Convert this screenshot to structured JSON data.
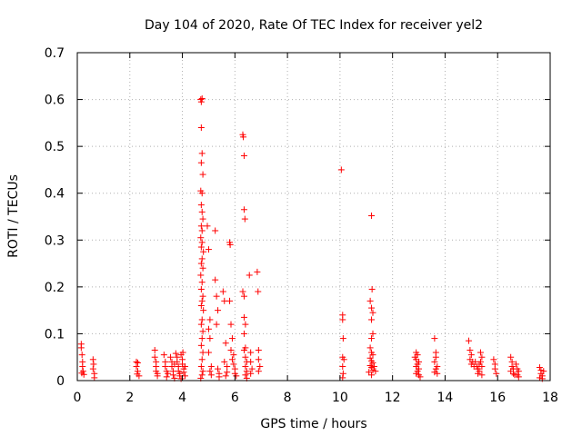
{
  "chart_data": {
    "type": "scatter",
    "title": "Day 104 of 2020, Rate Of TEC Index for receiver yel2",
    "xlabel": "GPS time / hours",
    "ylabel": "ROTI / TECUs",
    "xlim": [
      0,
      18
    ],
    "ylim": [
      0,
      0.7
    ],
    "x_ticks": [
      "0",
      "2",
      "4",
      "6",
      "8",
      "10",
      "12",
      "14",
      "16",
      "18"
    ],
    "y_ticks": [
      "0",
      "0.1",
      "0.2",
      "0.3",
      "0.4",
      "0.5",
      "0.6",
      "0.7"
    ],
    "grid": true,
    "marker": "+",
    "color": "#ff0000",
    "series": [
      {
        "name": "ROTI",
        "points": [
          [
            0.15,
            0.078
          ],
          [
            0.15,
            0.07
          ],
          [
            0.18,
            0.055
          ],
          [
            0.2,
            0.04
          ],
          [
            0.2,
            0.03
          ],
          [
            0.22,
            0.02
          ],
          [
            0.25,
            0.013
          ],
          [
            0.17,
            0.016
          ],
          [
            0.6,
            0.045
          ],
          [
            0.62,
            0.035
          ],
          [
            0.6,
            0.025
          ],
          [
            0.65,
            0.015
          ],
          [
            0.65,
            0.006
          ],
          [
            2.25,
            0.04
          ],
          [
            2.25,
            0.03
          ],
          [
            2.3,
            0.02
          ],
          [
            2.28,
            0.014
          ],
          [
            2.35,
            0.01
          ],
          [
            2.3,
            0.038
          ],
          [
            2.95,
            0.065
          ],
          [
            2.95,
            0.05
          ],
          [
            3.0,
            0.04
          ],
          [
            3.0,
            0.03
          ],
          [
            3.0,
            0.02
          ],
          [
            3.05,
            0.015
          ],
          [
            3.05,
            0.01
          ],
          [
            3.3,
            0.055
          ],
          [
            3.35,
            0.04
          ],
          [
            3.35,
            0.03
          ],
          [
            3.4,
            0.02
          ],
          [
            3.45,
            0.015
          ],
          [
            3.4,
            0.008
          ],
          [
            3.55,
            0.05
          ],
          [
            3.6,
            0.04
          ],
          [
            3.6,
            0.03
          ],
          [
            3.65,
            0.02
          ],
          [
            3.65,
            0.012
          ],
          [
            3.7,
            0.035
          ],
          [
            3.75,
            0.058
          ],
          [
            3.8,
            0.05
          ],
          [
            3.8,
            0.04
          ],
          [
            3.85,
            0.03
          ],
          [
            3.85,
            0.02
          ],
          [
            3.9,
            0.015
          ],
          [
            3.9,
            0.01
          ],
          [
            3.95,
            0.055
          ],
          [
            4.0,
            0.045
          ],
          [
            4.0,
            0.035
          ],
          [
            4.05,
            0.025
          ],
          [
            4.05,
            0.018
          ],
          [
            4.1,
            0.01
          ],
          [
            4.1,
            0.03
          ],
          [
            3.7,
            0.005
          ],
          [
            3.95,
            0.004
          ],
          [
            4.02,
            0.06
          ],
          [
            4.7,
            0.6
          ],
          [
            4.72,
            0.595
          ],
          [
            4.75,
            0.602
          ],
          [
            4.72,
            0.54
          ],
          [
            4.75,
            0.485
          ],
          [
            4.72,
            0.465
          ],
          [
            4.78,
            0.44
          ],
          [
            4.7,
            0.405
          ],
          [
            4.75,
            0.4
          ],
          [
            4.72,
            0.375
          ],
          [
            4.75,
            0.36
          ],
          [
            4.78,
            0.345
          ],
          [
            4.72,
            0.33
          ],
          [
            4.75,
            0.32
          ],
          [
            4.7,
            0.305
          ],
          [
            4.75,
            0.295
          ],
          [
            4.72,
            0.285
          ],
          [
            4.8,
            0.275
          ],
          [
            4.75,
            0.26
          ],
          [
            4.72,
            0.25
          ],
          [
            4.78,
            0.24
          ],
          [
            4.7,
            0.225
          ],
          [
            4.75,
            0.21
          ],
          [
            4.72,
            0.195
          ],
          [
            4.78,
            0.18
          ],
          [
            4.75,
            0.17
          ],
          [
            4.72,
            0.16
          ],
          [
            4.8,
            0.15
          ],
          [
            4.75,
            0.13
          ],
          [
            4.72,
            0.12
          ],
          [
            4.78,
            0.105
          ],
          [
            4.75,
            0.09
          ],
          [
            4.72,
            0.075
          ],
          [
            4.78,
            0.06
          ],
          [
            4.75,
            0.045
          ],
          [
            4.72,
            0.03
          ],
          [
            4.78,
            0.02
          ],
          [
            4.75,
            0.012
          ],
          [
            4.7,
            0.005
          ],
          [
            4.95,
            0.33
          ],
          [
            5.0,
            0.28
          ],
          [
            5.05,
            0.13
          ],
          [
            5.0,
            0.11
          ],
          [
            5.05,
            0.09
          ],
          [
            5.0,
            0.06
          ],
          [
            5.1,
            0.03
          ],
          [
            5.05,
            0.02
          ],
          [
            5.1,
            0.012
          ],
          [
            5.25,
            0.32
          ],
          [
            5.25,
            0.215
          ],
          [
            5.3,
            0.18
          ],
          [
            5.35,
            0.15
          ],
          [
            5.3,
            0.12
          ],
          [
            5.35,
            0.025
          ],
          [
            5.4,
            0.015
          ],
          [
            5.4,
            0.008
          ],
          [
            5.55,
            0.19
          ],
          [
            5.6,
            0.17
          ],
          [
            5.65,
            0.08
          ],
          [
            5.6,
            0.04
          ],
          [
            5.7,
            0.03
          ],
          [
            5.7,
            0.018
          ],
          [
            5.65,
            0.01
          ],
          [
            5.8,
            0.295
          ],
          [
            5.82,
            0.29
          ],
          [
            5.8,
            0.17
          ],
          [
            5.85,
            0.12
          ],
          [
            5.9,
            0.09
          ],
          [
            5.85,
            0.065
          ],
          [
            5.9,
            0.045
          ],
          [
            5.95,
            0.035
          ],
          [
            6.0,
            0.025
          ],
          [
            6.0,
            0.015
          ],
          [
            6.05,
            0.01
          ],
          [
            5.95,
            0.055
          ],
          [
            6.3,
            0.525
          ],
          [
            6.32,
            0.52
          ],
          [
            6.35,
            0.48
          ],
          [
            6.35,
            0.365
          ],
          [
            6.38,
            0.345
          ],
          [
            6.3,
            0.19
          ],
          [
            6.35,
            0.18
          ],
          [
            6.35,
            0.135
          ],
          [
            6.4,
            0.12
          ],
          [
            6.35,
            0.1
          ],
          [
            6.4,
            0.07
          ],
          [
            6.35,
            0.065
          ],
          [
            6.4,
            0.05
          ],
          [
            6.45,
            0.04
          ],
          [
            6.4,
            0.03
          ],
          [
            6.45,
            0.02
          ],
          [
            6.4,
            0.012
          ],
          [
            6.45,
            0.005
          ],
          [
            6.55,
            0.225
          ],
          [
            6.6,
            0.06
          ],
          [
            6.6,
            0.04
          ],
          [
            6.65,
            0.025
          ],
          [
            6.6,
            0.015
          ],
          [
            6.85,
            0.232
          ],
          [
            6.88,
            0.19
          ],
          [
            6.9,
            0.065
          ],
          [
            6.9,
            0.045
          ],
          [
            6.95,
            0.03
          ],
          [
            6.9,
            0.02
          ],
          [
            10.05,
            0.45
          ],
          [
            10.1,
            0.14
          ],
          [
            10.1,
            0.13
          ],
          [
            10.12,
            0.09
          ],
          [
            10.1,
            0.05
          ],
          [
            10.15,
            0.045
          ],
          [
            10.1,
            0.03
          ],
          [
            10.12,
            0.015
          ],
          [
            10.1,
            0.006
          ],
          [
            11.2,
            0.352
          ],
          [
            11.22,
            0.195
          ],
          [
            11.15,
            0.17
          ],
          [
            11.2,
            0.155
          ],
          [
            11.25,
            0.145
          ],
          [
            11.2,
            0.13
          ],
          [
            11.25,
            0.1
          ],
          [
            11.2,
            0.09
          ],
          [
            11.15,
            0.07
          ],
          [
            11.2,
            0.06
          ],
          [
            11.25,
            0.055
          ],
          [
            11.15,
            0.048
          ],
          [
            11.2,
            0.042
          ],
          [
            11.25,
            0.038
          ],
          [
            11.15,
            0.032
          ],
          [
            11.2,
            0.028
          ],
          [
            11.25,
            0.022
          ],
          [
            11.1,
            0.018
          ],
          [
            11.2,
            0.012
          ],
          [
            11.3,
            0.03
          ],
          [
            11.35,
            0.02
          ],
          [
            12.9,
            0.06
          ],
          [
            12.95,
            0.055
          ],
          [
            12.9,
            0.045
          ],
          [
            13.0,
            0.04
          ],
          [
            12.95,
            0.035
          ],
          [
            12.9,
            0.03
          ],
          [
            13.0,
            0.025
          ],
          [
            12.95,
            0.02
          ],
          [
            12.9,
            0.015
          ],
          [
            13.0,
            0.012
          ],
          [
            13.05,
            0.008
          ],
          [
            12.85,
            0.05
          ],
          [
            13.6,
            0.09
          ],
          [
            13.65,
            0.06
          ],
          [
            13.65,
            0.05
          ],
          [
            13.6,
            0.04
          ],
          [
            13.7,
            0.03
          ],
          [
            13.65,
            0.025
          ],
          [
            13.6,
            0.018
          ],
          [
            13.7,
            0.015
          ],
          [
            14.9,
            0.085
          ],
          [
            14.95,
            0.065
          ],
          [
            15.0,
            0.055
          ],
          [
            14.95,
            0.045
          ],
          [
            15.05,
            0.04
          ],
          [
            15.0,
            0.035
          ],
          [
            15.1,
            0.03
          ],
          [
            15.15,
            0.04
          ],
          [
            15.2,
            0.03
          ],
          [
            15.25,
            0.025
          ],
          [
            15.3,
            0.035
          ],
          [
            15.35,
            0.06
          ],
          [
            15.4,
            0.05
          ],
          [
            15.35,
            0.04
          ],
          [
            15.4,
            0.03
          ],
          [
            15.3,
            0.02
          ],
          [
            15.25,
            0.015
          ],
          [
            15.4,
            0.012
          ],
          [
            15.85,
            0.045
          ],
          [
            15.9,
            0.035
          ],
          [
            15.9,
            0.025
          ],
          [
            15.95,
            0.015
          ],
          [
            16.5,
            0.05
          ],
          [
            16.55,
            0.04
          ],
          [
            16.55,
            0.03
          ],
          [
            16.6,
            0.025
          ],
          [
            16.5,
            0.02
          ],
          [
            16.6,
            0.015
          ],
          [
            16.65,
            0.012
          ],
          [
            16.7,
            0.035
          ],
          [
            16.75,
            0.025
          ],
          [
            16.8,
            0.02
          ],
          [
            16.75,
            0.012
          ],
          [
            16.8,
            0.008
          ],
          [
            17.6,
            0.028
          ],
          [
            17.65,
            0.022
          ],
          [
            17.65,
            0.015
          ],
          [
            17.7,
            0.01
          ],
          [
            17.6,
            0.006
          ],
          [
            17.7,
            0.004
          ],
          [
            17.75,
            0.02
          ]
        ]
      }
    ]
  }
}
